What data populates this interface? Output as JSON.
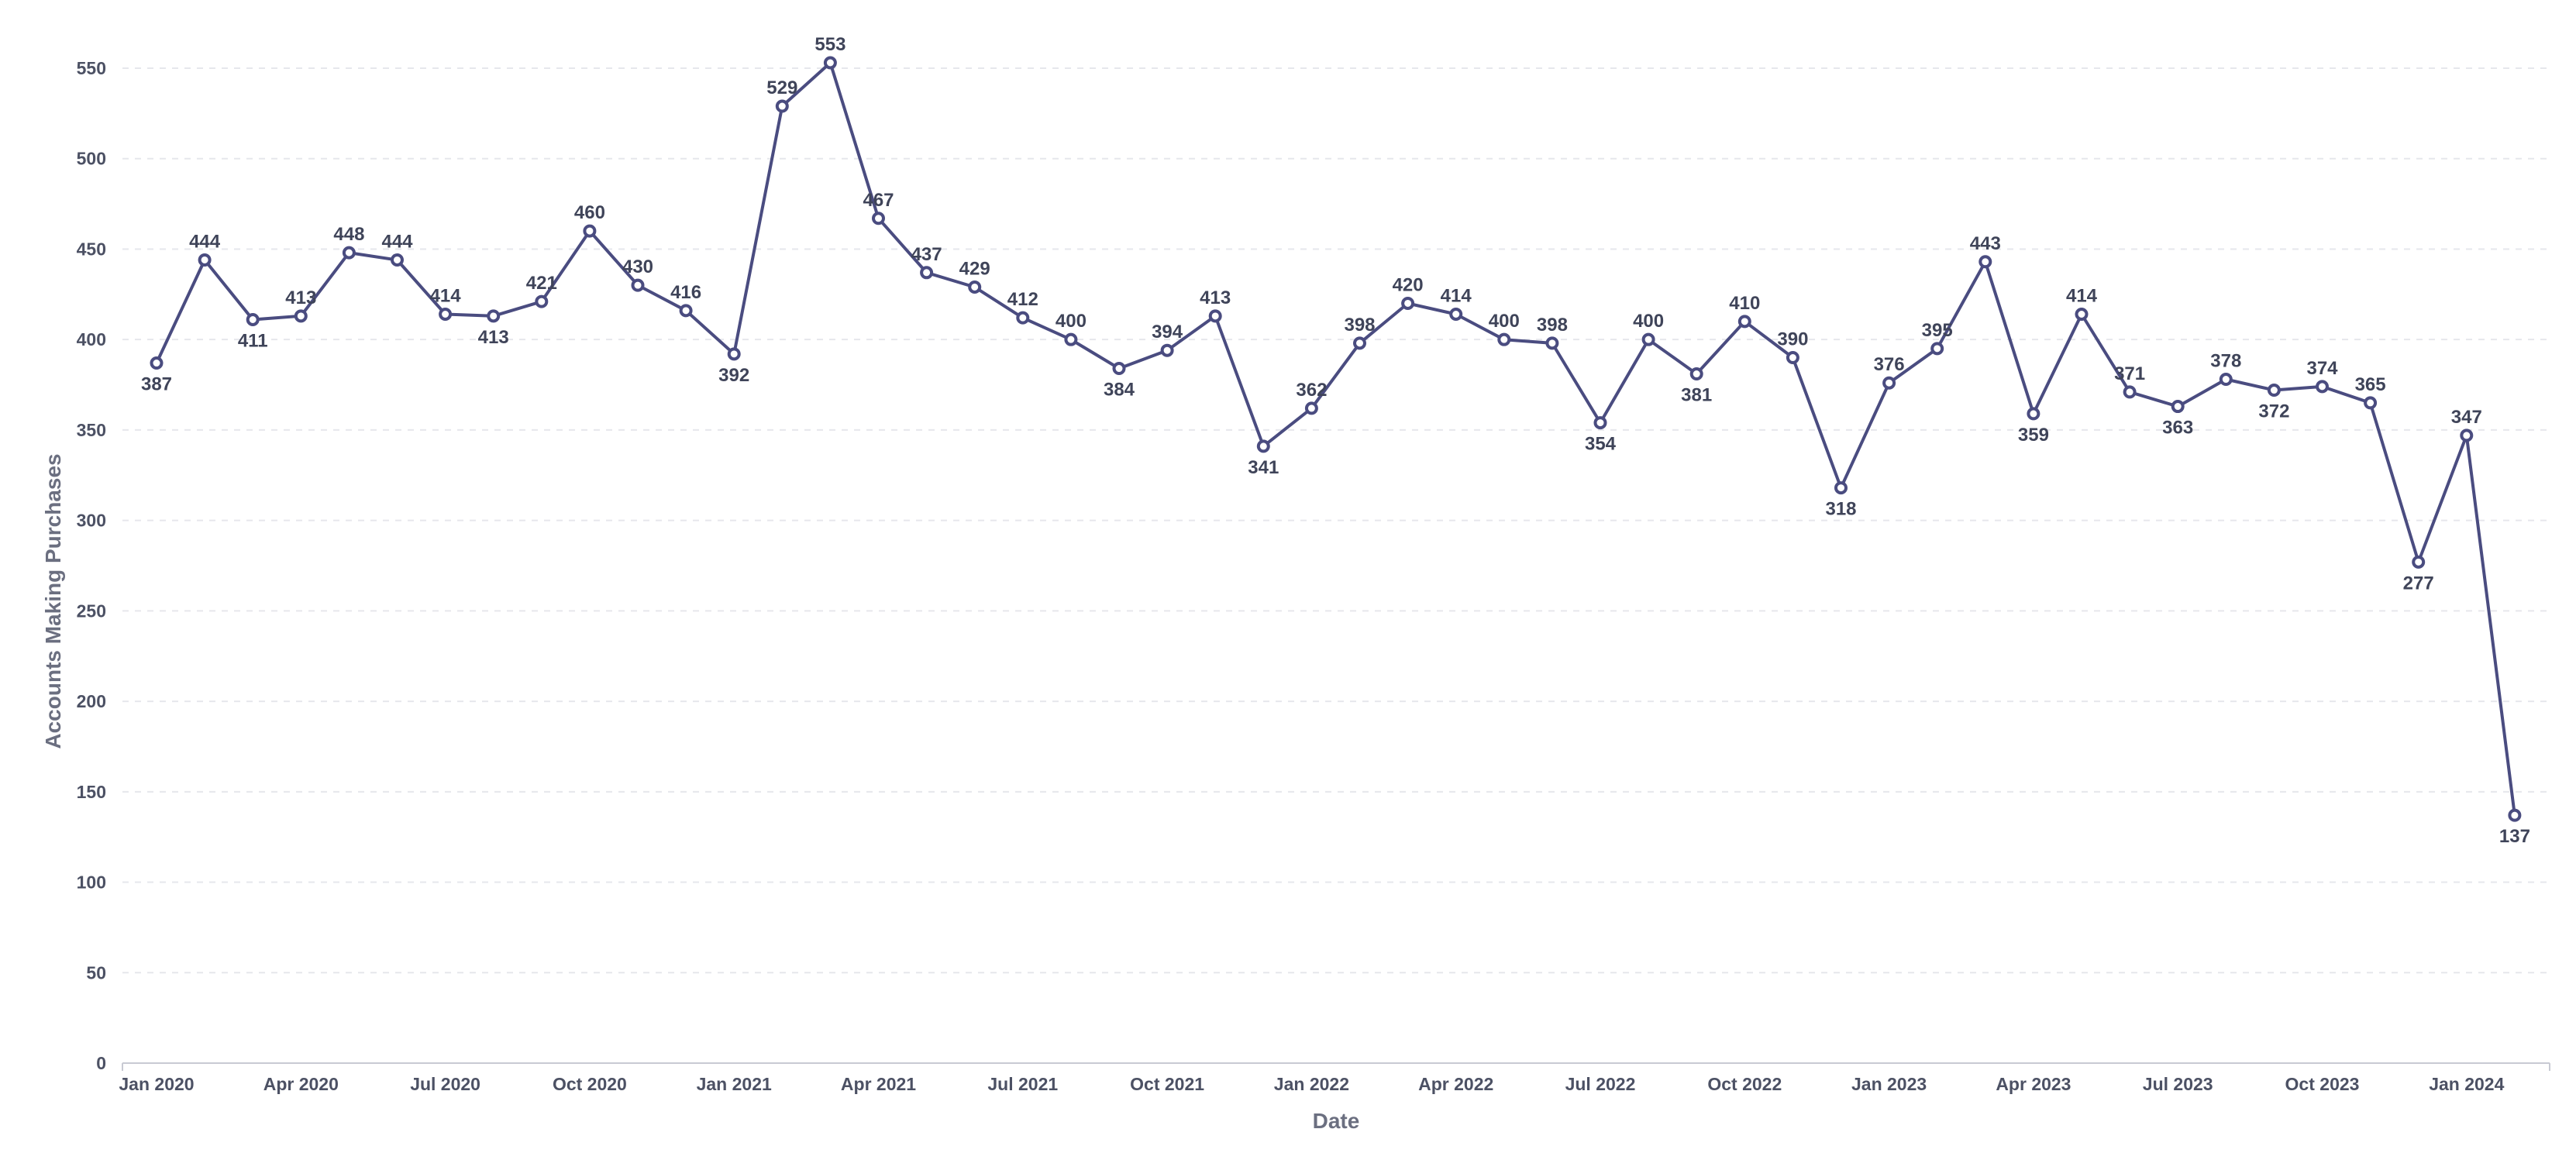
{
  "chart_data": {
    "type": "line",
    "title": "",
    "xlabel": "Date",
    "ylabel": "Accounts Making Purchases",
    "ylim": [
      0,
      570
    ],
    "yticks": [
      0,
      50,
      100,
      150,
      200,
      250,
      300,
      350,
      400,
      450,
      500,
      550
    ],
    "grid": true,
    "legend": "none",
    "x_tick_labels": [
      "Jan 2020",
      "Apr 2020",
      "Jul 2020",
      "Oct 2020",
      "Jan 2021",
      "Apr 2021",
      "Jul 2021",
      "Oct 2021",
      "Jan 2022",
      "Apr 2022",
      "Jul 2022",
      "Oct 2022",
      "Jan 2023",
      "Apr 2023",
      "Jul 2023",
      "Oct 2023",
      "Jan 2024"
    ],
    "x": [
      "2020-01",
      "2020-02",
      "2020-03",
      "2020-04",
      "2020-05",
      "2020-06",
      "2020-07",
      "2020-08",
      "2020-09",
      "2020-10",
      "2020-11",
      "2020-12",
      "2021-01",
      "2021-02",
      "2021-03",
      "2021-04",
      "2021-05",
      "2021-06",
      "2021-07",
      "2021-08",
      "2021-09",
      "2021-10",
      "2021-11",
      "2021-12",
      "2022-01",
      "2022-02",
      "2022-03",
      "2022-04",
      "2022-05",
      "2022-06",
      "2022-07",
      "2022-08",
      "2022-09",
      "2022-10",
      "2022-11",
      "2022-12",
      "2023-01",
      "2023-02",
      "2023-03",
      "2023-04",
      "2023-05",
      "2023-06",
      "2023-07",
      "2023-08",
      "2023-09",
      "2023-10",
      "2023-11",
      "2023-12",
      "2024-01",
      "2024-02"
    ],
    "series": [
      {
        "color": "#4a4c80",
        "values": [
          387,
          444,
          411,
          413,
          448,
          444,
          414,
          413,
          421,
          460,
          430,
          416,
          392,
          529,
          553,
          467,
          437,
          429,
          412,
          400,
          384,
          394,
          413,
          341,
          362,
          398,
          420,
          414,
          400,
          398,
          354,
          400,
          381,
          410,
          390,
          318,
          376,
          395,
          443,
          359,
          414,
          371,
          363,
          378,
          372,
          374,
          365,
          277,
          347,
          137
        ]
      }
    ],
    "label_position": [
      "below",
      "above",
      "below",
      "above",
      "above",
      "above",
      "above",
      "below",
      "above",
      "above",
      "above",
      "above",
      "below",
      "above",
      "above",
      "above",
      "above",
      "above",
      "above",
      "above",
      "below",
      "above",
      "above",
      "below",
      "above",
      "above",
      "above",
      "above",
      "above",
      "above",
      "below",
      "above",
      "below",
      "above",
      "above",
      "below",
      "above",
      "above",
      "above",
      "below",
      "above",
      "above",
      "below",
      "above",
      "below",
      "above",
      "above",
      "below",
      "above",
      "below"
    ]
  }
}
